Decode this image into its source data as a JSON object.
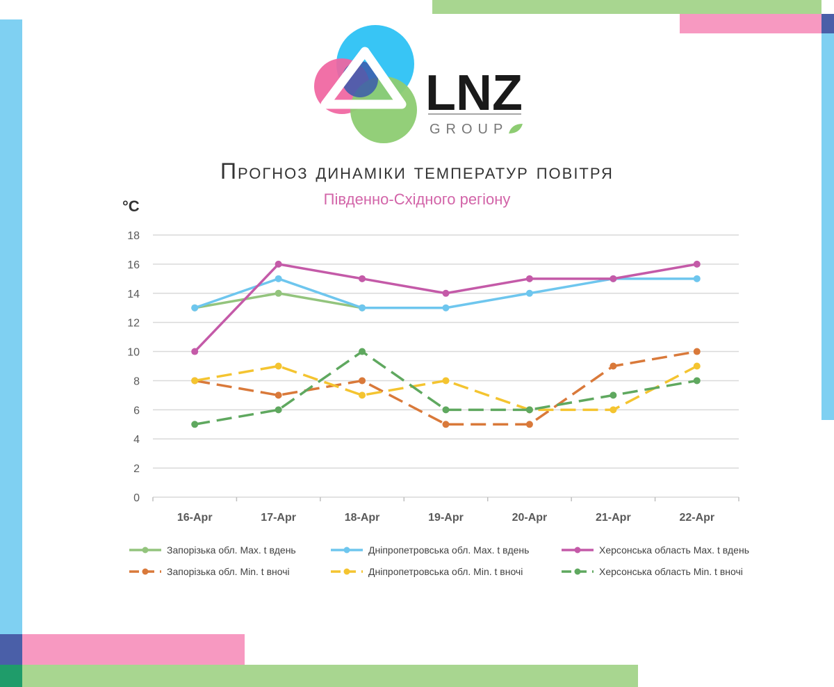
{
  "brand": {
    "name": "LNZ",
    "sub": "GROUP",
    "colors": {
      "blue": "#38c5f5",
      "pink": "#f064a0",
      "green": "#8dcc72",
      "navy": "#3b5bab",
      "dark": "#1a1a1a"
    }
  },
  "decor_colors": {
    "green": "#a8d690",
    "pink": "#f799c1",
    "blue": "#7fd0f2",
    "navy": "#4a5fa8",
    "teal": "#1f9c6a"
  },
  "chart_data": {
    "type": "line",
    "title": "Прогноз динаміки температур повітря",
    "subtitle": "Південно-Східного регіону",
    "ylabel": "°C",
    "xlabel": "",
    "categories": [
      "16-Apr",
      "17-Apr",
      "18-Apr",
      "19-Apr",
      "20-Apr",
      "21-Apr",
      "22-Apr"
    ],
    "ylim": [
      0,
      18
    ],
    "yticks": [
      "0",
      "2",
      "4",
      "6",
      "8",
      "10",
      "12",
      "14",
      "16",
      "18"
    ],
    "grid": true,
    "legend_position": "bottom",
    "series": [
      {
        "name": "Запорізька обл. Max. t вдень",
        "values": [
          13,
          14,
          13,
          null,
          null,
          null,
          null
        ],
        "color": "#93c47d",
        "dash": "solid"
      },
      {
        "name": "Дніпропетровська обл. Max. t вдень",
        "values": [
          13,
          15,
          13,
          13,
          14,
          15,
          15
        ],
        "color": "#6ec6ee",
        "dash": "solid"
      },
      {
        "name": "Херсонська область Max. t вдень",
        "values": [
          10,
          16,
          15,
          14,
          15,
          15,
          16
        ],
        "color": "#c45aa8",
        "dash": "solid"
      },
      {
        "name": "Запорізька обл. Min. t вночі",
        "values": [
          8,
          7,
          8,
          5,
          5,
          9,
          10
        ],
        "color": "#d9793a",
        "dash": "dashed"
      },
      {
        "name": "Дніпропетровська обл. Min. t вночі",
        "values": [
          8,
          9,
          7,
          8,
          6,
          6,
          9
        ],
        "color": "#f4c430",
        "dash": "dashed"
      },
      {
        "name": "Херсонська область Min. t вночі",
        "values": [
          5,
          6,
          10,
          6,
          6,
          7,
          8
        ],
        "color": "#5fa85f",
        "dash": "dashed"
      }
    ]
  }
}
